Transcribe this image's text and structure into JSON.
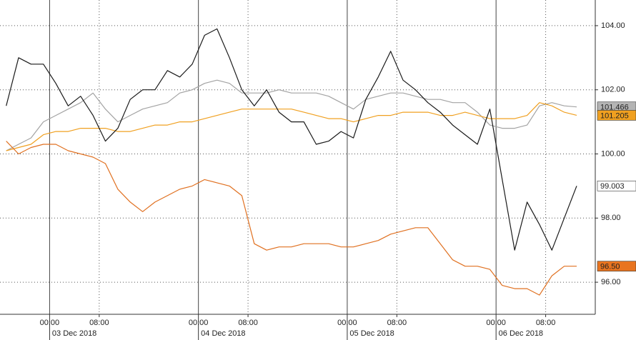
{
  "chart_data": {
    "type": "line",
    "x": [
      -7,
      -5,
      -3,
      -1,
      1,
      3,
      5,
      7,
      9,
      11,
      13,
      15,
      17,
      19,
      21,
      23,
      25,
      27,
      29,
      31,
      33,
      35,
      37,
      39,
      41,
      43,
      45,
      47,
      49,
      51,
      53,
      55,
      57,
      59,
      61,
      63,
      65,
      67,
      69,
      71,
      73,
      75,
      77,
      79,
      81,
      83,
      85
    ],
    "xlim": [
      -8,
      88
    ],
    "xticks": [
      {
        "value": 0,
        "label": "00:00"
      },
      {
        "value": 8,
        "label": "08:00"
      },
      {
        "value": 24,
        "label": "00:00"
      },
      {
        "value": 32,
        "label": "08:00"
      },
      {
        "value": 48,
        "label": "00:00"
      },
      {
        "value": 56,
        "label": "08:00"
      },
      {
        "value": 72,
        "label": "00:00"
      },
      {
        "value": 80,
        "label": "08:00"
      }
    ],
    "dates": [
      "03 Dec 2018",
      "04 Dec 2018",
      "05 Dec 2018",
      "06 Dec 2018"
    ],
    "ylim": [
      95,
      104.8
    ],
    "yticks": [
      {
        "value": 96,
        "label": "96.00"
      },
      {
        "value": 98,
        "label": "98.00"
      },
      {
        "value": 100,
        "label": "100.00"
      },
      {
        "value": 102,
        "label": "102.00"
      },
      {
        "value": 104,
        "label": "104.00"
      }
    ],
    "grid": true,
    "series": [
      {
        "color": "#a3a3a3",
        "label_color": "#b4b4b4",
        "end_label": "101.466",
        "values": [
          100.1,
          100.3,
          100.5,
          101.0,
          101.2,
          101.4,
          101.6,
          101.9,
          101.4,
          101.0,
          101.2,
          101.4,
          101.5,
          101.6,
          101.9,
          102.0,
          102.2,
          102.3,
          102.2,
          101.9,
          101.9,
          101.9,
          102.0,
          101.9,
          101.9,
          101.9,
          101.8,
          101.6,
          101.4,
          101.7,
          101.8,
          101.9,
          101.9,
          101.8,
          101.7,
          101.7,
          101.6,
          101.6,
          101.3,
          100.9,
          100.8,
          100.8,
          100.9,
          101.5,
          101.6,
          101.5,
          101.466
        ]
      },
      {
        "color": "#f0a020",
        "label_color": "#f0a020",
        "end_label": "101.205",
        "values": [
          100.1,
          100.2,
          100.3,
          100.6,
          100.7,
          100.7,
          100.8,
          100.8,
          100.8,
          100.7,
          100.7,
          100.8,
          100.9,
          100.9,
          101.0,
          101.0,
          101.1,
          101.2,
          101.3,
          101.4,
          101.4,
          101.4,
          101.4,
          101.4,
          101.3,
          101.2,
          101.1,
          101.1,
          101.0,
          101.1,
          101.2,
          101.2,
          101.3,
          101.3,
          101.3,
          101.2,
          101.2,
          101.3,
          101.2,
          101.1,
          101.1,
          101.1,
          101.2,
          101.6,
          101.5,
          101.3,
          101.205
        ]
      },
      {
        "color": "#1a1a1a",
        "label_color": "#ffffff",
        "end_label": "99.003",
        "values": [
          101.5,
          103.0,
          102.8,
          102.8,
          102.2,
          101.5,
          101.8,
          101.2,
          100.4,
          100.8,
          101.7,
          102.0,
          102.0,
          102.6,
          102.4,
          102.8,
          103.7,
          103.9,
          103.0,
          102.0,
          101.5,
          102.0,
          101.3,
          101.0,
          101.0,
          100.3,
          100.4,
          100.7,
          100.5,
          101.7,
          102.4,
          103.2,
          102.3,
          102.0,
          101.6,
          101.3,
          100.9,
          100.6,
          100.3,
          101.4,
          99.2,
          97.0,
          98.5,
          97.8,
          97.0,
          98.0,
          99.003
        ]
      },
      {
        "color": "#e07020",
        "label_color": "#e87420",
        "end_label": "96.50",
        "values": [
          100.4,
          100.0,
          100.2,
          100.3,
          100.3,
          100.1,
          100.0,
          99.9,
          99.7,
          98.9,
          98.5,
          98.2,
          98.5,
          98.7,
          98.9,
          99.0,
          99.2,
          99.1,
          99.0,
          98.7,
          97.2,
          97.0,
          97.1,
          97.1,
          97.2,
          97.2,
          97.2,
          97.1,
          97.1,
          97.2,
          97.3,
          97.5,
          97.6,
          97.7,
          97.7,
          97.2,
          96.7,
          96.5,
          96.5,
          96.4,
          95.9,
          95.8,
          95.8,
          95.6,
          96.2,
          96.5,
          96.5
        ]
      }
    ]
  }
}
